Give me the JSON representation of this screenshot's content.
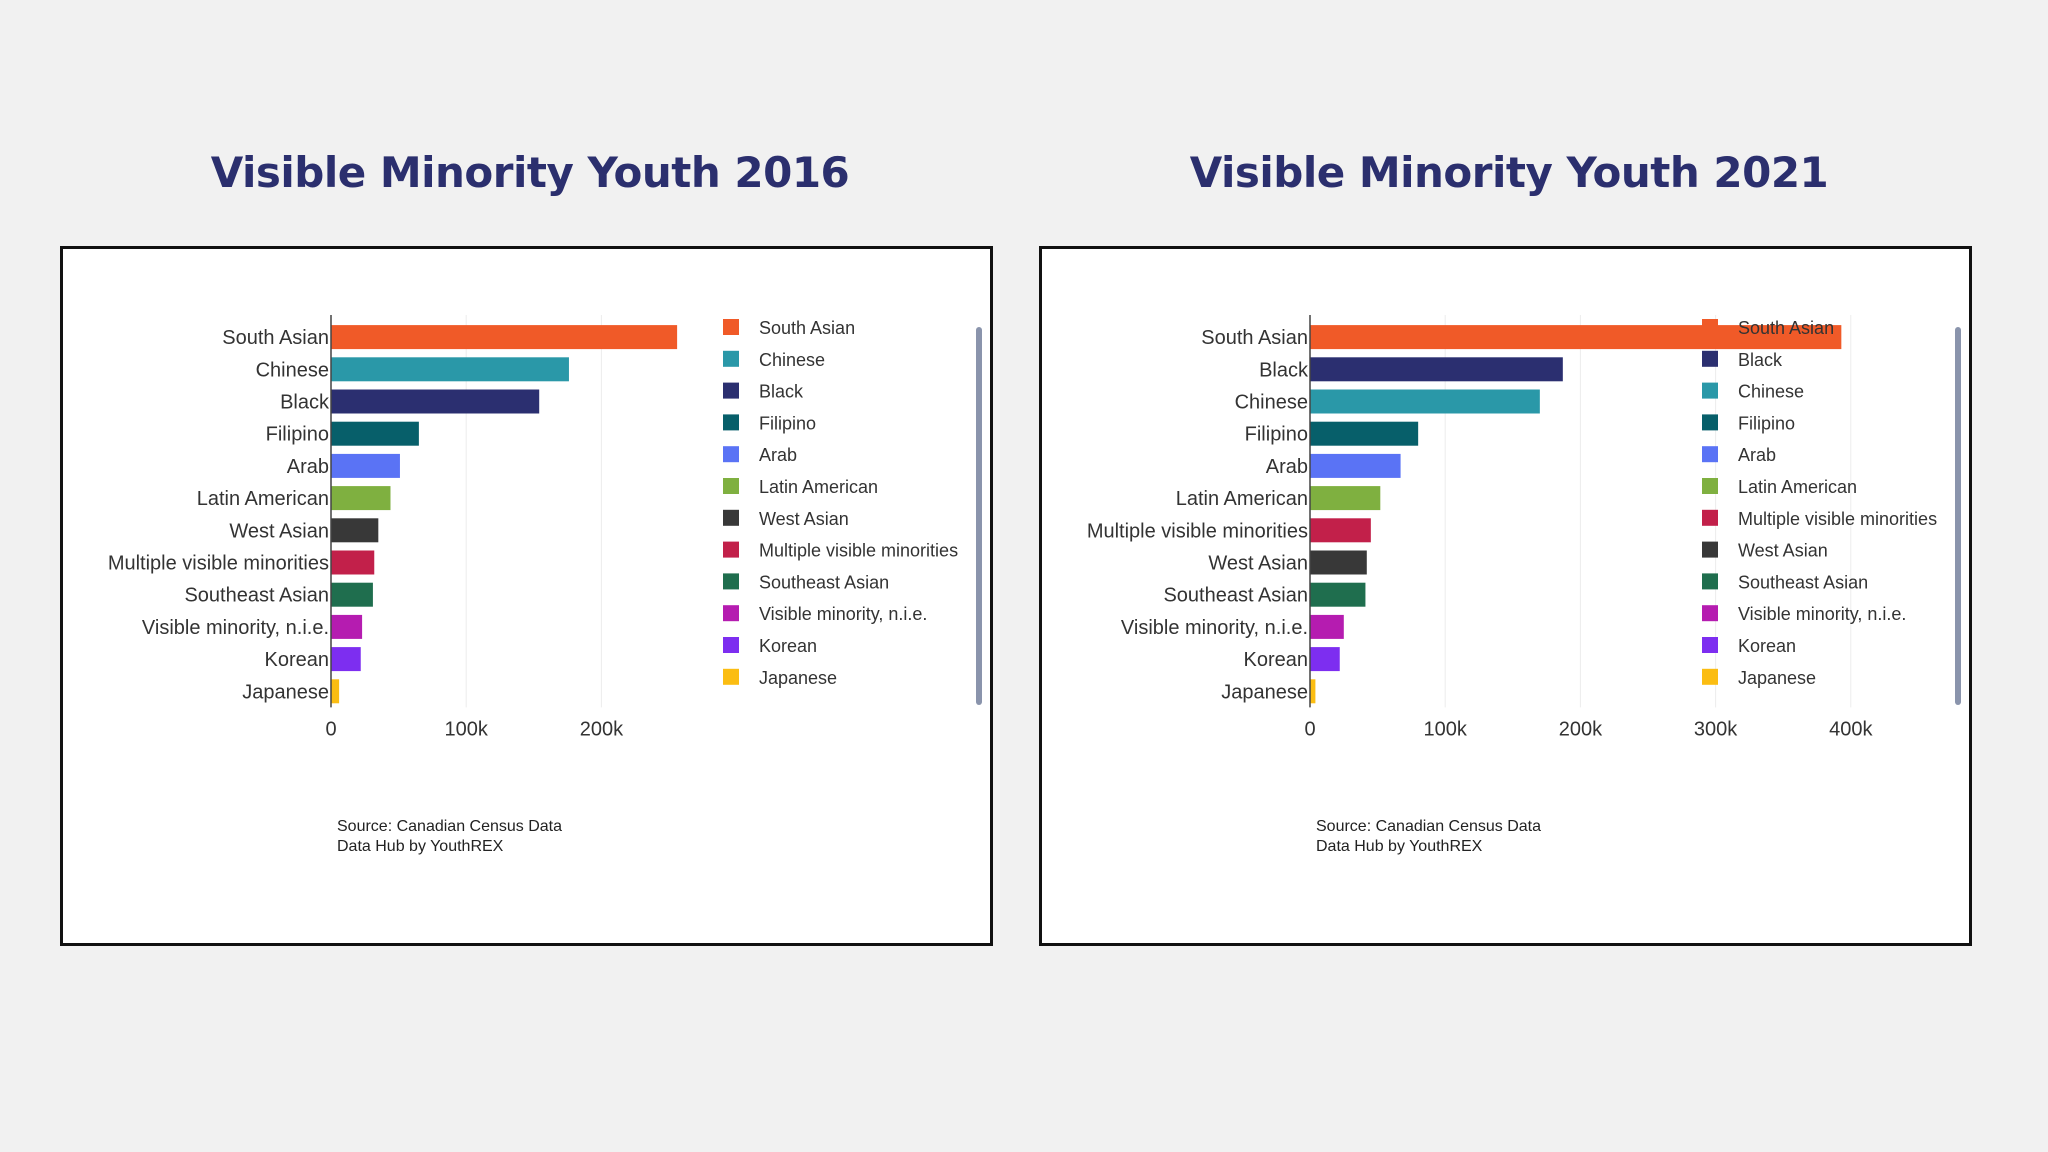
{
  "source_lines": [
    "Source: Canadian Census Data",
    "Data Hub by YouthREX"
  ],
  "colors": {
    "South Asian": "#f05a28",
    "Chinese": "#2a98a8",
    "Black": "#2b2f70",
    "Filipino": "#075f6a",
    "Arab": "#5a73f5",
    "Latin American": "#7fb040",
    "West Asian": "#383838",
    "Multiple visible minorities": "#c2204a",
    "Southeast Asian": "#1f6e4e",
    "Visible minority, n.i.e.": "#b51cb0",
    "Korean": "#7d2ef0",
    "Japanese": "#fbbd12"
  },
  "chart_data": [
    {
      "type": "bar",
      "orientation": "horizontal",
      "title": "Visible Minority Youth 2016",
      "categories": [
        "South Asian",
        "Chinese",
        "Black",
        "Filipino",
        "Arab",
        "Latin American",
        "West Asian",
        "Multiple visible minorities",
        "Southeast Asian",
        "Visible minority, n.i.e.",
        "Korean",
        "Japanese"
      ],
      "values": [
        256000,
        176000,
        154000,
        65000,
        51000,
        44000,
        35000,
        32000,
        31000,
        23000,
        22000,
        6000
      ],
      "xlim": [
        0,
        260000
      ],
      "xticks": [
        0,
        100000,
        200000
      ],
      "xtick_labels": [
        "0",
        "100k",
        "200k"
      ],
      "legend": [
        "South Asian",
        "Chinese",
        "Black",
        "Filipino",
        "Arab",
        "Latin American",
        "West Asian",
        "Multiple visible minorities",
        "Southeast Asian",
        "Visible minority, n.i.e.",
        "Korean",
        "Japanese"
      ],
      "legend_position": "right",
      "grid": "vertical"
    },
    {
      "type": "bar",
      "orientation": "horizontal",
      "title": "Visible Minority Youth 2021",
      "categories": [
        "South Asian",
        "Black",
        "Chinese",
        "Filipino",
        "Arab",
        "Latin American",
        "Multiple visible minorities",
        "West Asian",
        "Southeast Asian",
        "Visible minority, n.i.e.",
        "Korean",
        "Japanese"
      ],
      "values": [
        393000,
        187000,
        170000,
        80000,
        67000,
        52000,
        45000,
        42000,
        41000,
        25000,
        22000,
        4000
      ],
      "xlim": [
        0,
        400000
      ],
      "xticks": [
        0,
        100000,
        200000,
        300000,
        400000
      ],
      "xtick_labels": [
        "0",
        "100k",
        "200k",
        "300k",
        "400k"
      ],
      "legend": [
        "South Asian",
        "Black",
        "Chinese",
        "Filipino",
        "Arab",
        "Latin American",
        "Multiple visible minorities",
        "West Asian",
        "Southeast Asian",
        "Visible minority, n.i.e.",
        "Korean",
        "Japanese"
      ],
      "legend_position": "right",
      "grid": "vertical"
    }
  ]
}
